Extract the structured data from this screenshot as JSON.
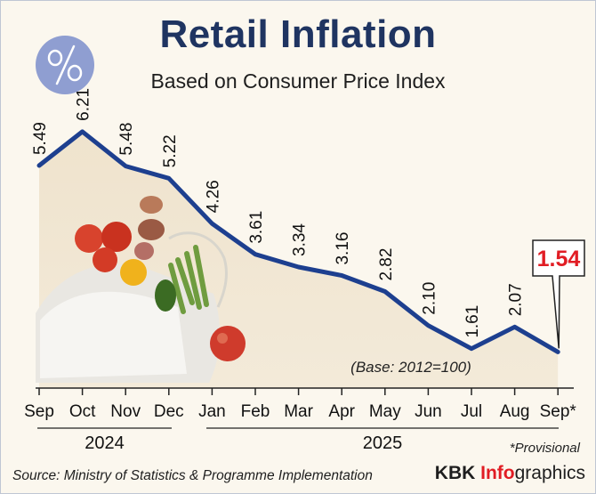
{
  "title": "Retail Inflation",
  "subtitle": "Based on Consumer Price Index",
  "badge_icon": "percent-icon",
  "base_note": "(Base: 2012=100)",
  "year_labels": {
    "y2024": "2024",
    "y2025": "2025"
  },
  "footnote": "*Provisional",
  "source": "Source: Ministry of Statistics & Programme Implementation",
  "brand": {
    "part1": "KBK ",
    "part2": "Info",
    "part3": "graphics"
  },
  "colors": {
    "line": "#1d3f8f",
    "title": "#1f3461",
    "highlight": "#e11d24",
    "badge": "#8f9ed1"
  },
  "chart_data": {
    "type": "line",
    "title": "Retail Inflation",
    "subtitle": "Based on Consumer Price Index",
    "categories": [
      "Sep",
      "Oct",
      "Nov",
      "Dec",
      "Jan",
      "Feb",
      "Mar",
      "Apr",
      "May",
      "Jun",
      "Jul",
      "Aug",
      "Sep*"
    ],
    "values": [
      5.49,
      6.21,
      5.48,
      5.22,
      4.26,
      3.61,
      3.34,
      3.16,
      2.82,
      2.1,
      1.61,
      2.07,
      1.54
    ],
    "value_labels": [
      "5.49",
      "6.21",
      "5.48",
      "5.22",
      "4.26",
      "3.61",
      "3.34",
      "3.16",
      "2.82",
      "2.10",
      "1.61",
      "2.07",
      "1.54"
    ],
    "highlight_index": 12,
    "ylim": [
      0,
      7
    ],
    "grid": false
  }
}
